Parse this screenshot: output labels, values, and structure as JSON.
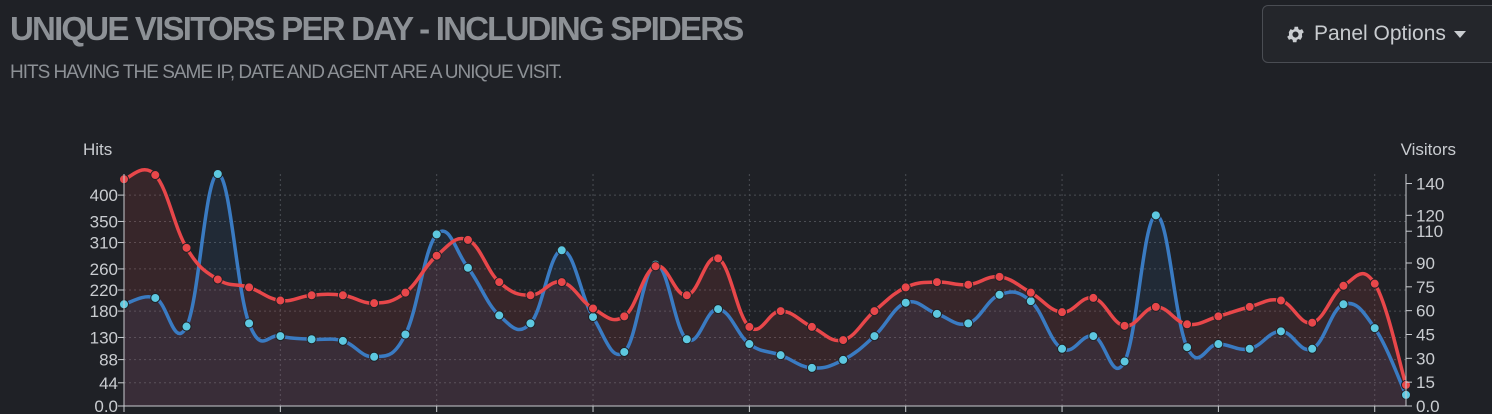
{
  "header": {
    "title": "UNIQUE VISITORS PER DAY - INCLUDING SPIDERS",
    "subtitle": "HITS HAVING THE SAME IP, DATE AND AGENT ARE A UNIQUE VISIT."
  },
  "panel_options": {
    "label": "Panel Options",
    "icon": "gear-icon",
    "caret_icon": "caret-down-icon"
  },
  "colors": {
    "hits": "#e8474a",
    "visitors": "#3a7bc2",
    "visitor_points": "#5dc8e0",
    "background": "#1f2126",
    "grid": "#4a4d53",
    "axis": "#c9ccd0"
  },
  "chart_data": {
    "type": "line",
    "left_axis": {
      "label": "Hits",
      "ticks": [
        "0.0",
        "44",
        "88",
        "130",
        "180",
        "220",
        "260",
        "310",
        "350",
        "400"
      ],
      "range": [
        0,
        440
      ]
    },
    "right_axis": {
      "label": "Visitors",
      "ticks": [
        "0.0",
        "15",
        "30",
        "45",
        "60",
        "75",
        "90",
        "110",
        "120",
        "140"
      ],
      "range": [
        0,
        146
      ]
    },
    "grid": true,
    "series": [
      {
        "axis": "left",
        "color": "#e8474a",
        "values": [
          430,
          438,
          300,
          240,
          225,
          200,
          210,
          210,
          195,
          215,
          285,
          315,
          235,
          210,
          235,
          185,
          170,
          265,
          210,
          280,
          150,
          180,
          150,
          125,
          180,
          225,
          235,
          230,
          245,
          215,
          178,
          205,
          152,
          188,
          155,
          170,
          188,
          200,
          158,
          228,
          232,
          40
        ]
      },
      {
        "axis": "right",
        "color": "#3a7bc2",
        "values": [
          64,
          68,
          50,
          146,
          52,
          44,
          42,
          41,
          31,
          45,
          108,
          87,
          57,
          52,
          98,
          56,
          34,
          89,
          42,
          61,
          39,
          32,
          24,
          29,
          44,
          65,
          58,
          52,
          70,
          66,
          36,
          44,
          28,
          120,
          37,
          39,
          36,
          47,
          36,
          64,
          49,
          7
        ]
      }
    ]
  }
}
